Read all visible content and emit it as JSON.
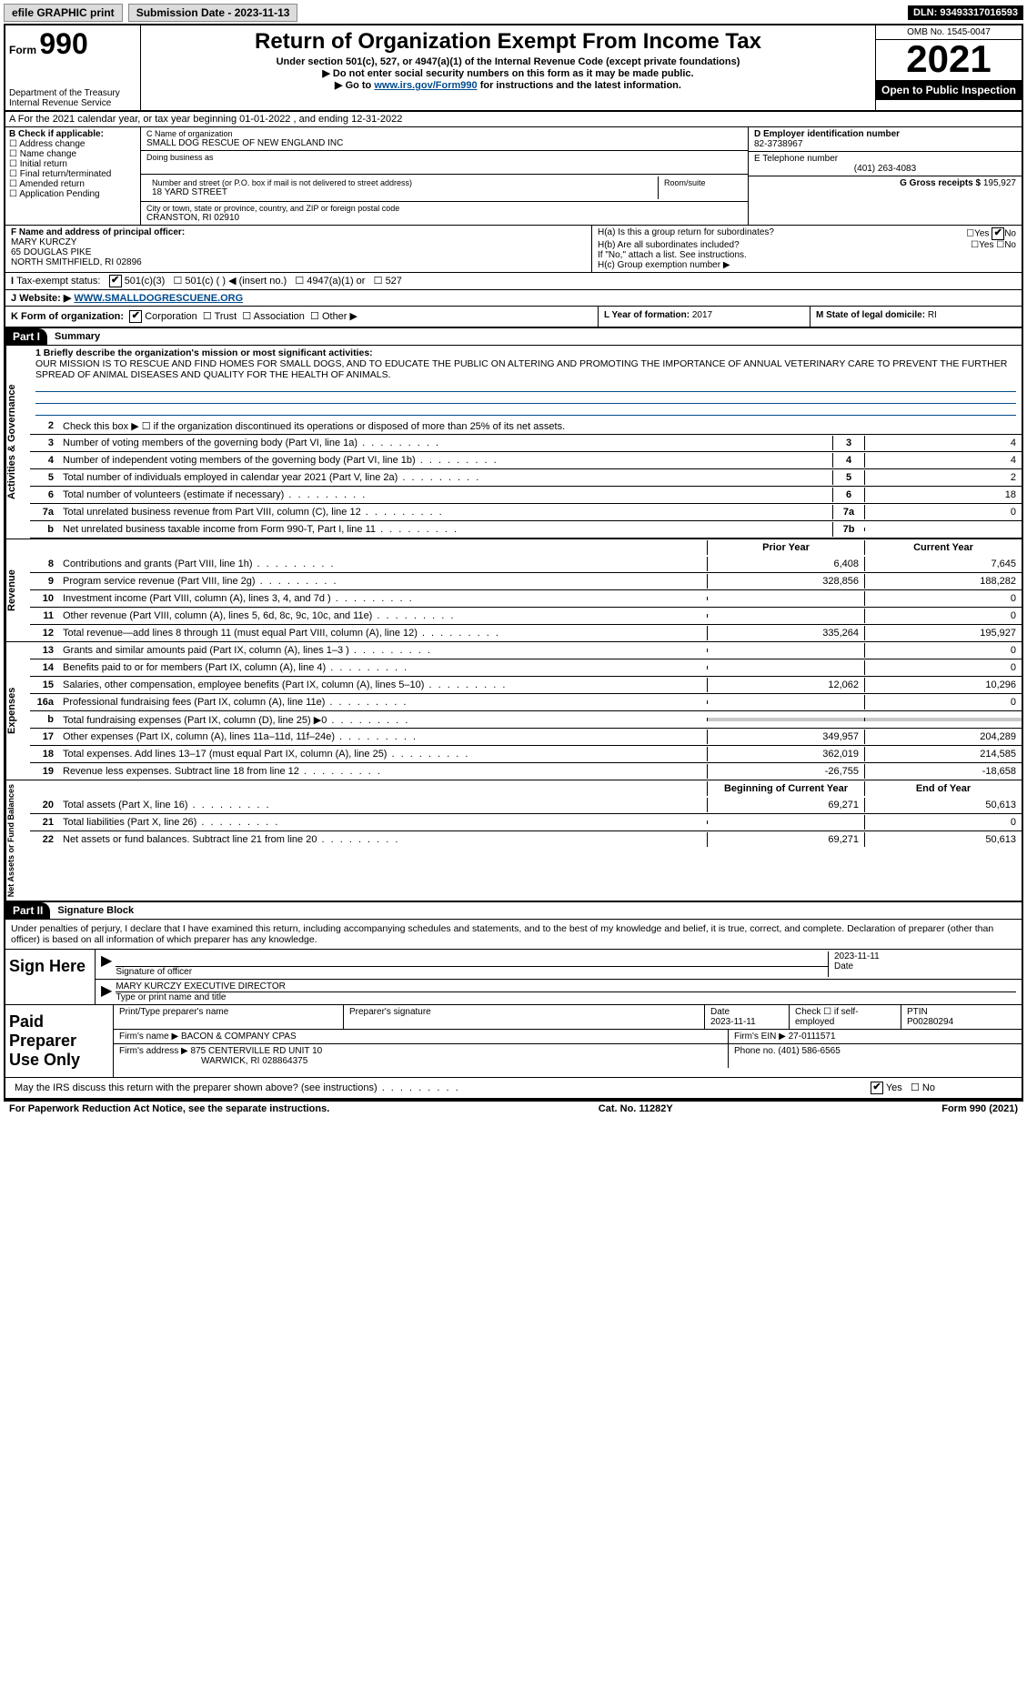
{
  "topbar": {
    "efile": "efile GRAPHIC print",
    "submission_label": "Submission Date - 2023-11-13",
    "dln": "DLN: 93493317016593"
  },
  "header": {
    "form_prefix": "Form",
    "form_number": "990",
    "title": "Return of Organization Exempt From Income Tax",
    "subtitle": "Under section 501(c), 527, or 4947(a)(1) of the Internal Revenue Code (except private foundations)",
    "note1": "▶ Do not enter social security numbers on this form as it may be made public.",
    "note2_pre": "▶ Go to ",
    "note2_link": "www.irs.gov/Form990",
    "note2_post": " for instructions and the latest information.",
    "dept": "Department of the Treasury",
    "irs": "Internal Revenue Service",
    "omb": "OMB No. 1545-0047",
    "year": "2021",
    "open": "Open to Public Inspection"
  },
  "rowA": "A For the 2021 calendar year, or tax year beginning 01-01-2022   , and ending 12-31-2022",
  "boxB": {
    "label": "B Check if applicable:",
    "items": [
      "Address change",
      "Name change",
      "Initial return",
      "Final return/terminated",
      "Amended return",
      "Application Pending"
    ]
  },
  "boxC": {
    "lbl_name": "C Name of organization",
    "org_name": "SMALL DOG RESCUE OF NEW ENGLAND INC",
    "lbl_dba": "Doing business as",
    "lbl_addr": "Number and street (or P.O. box if mail is not delivered to street address)",
    "lbl_room": "Room/suite",
    "street": "18 YARD STREET",
    "lbl_city": "City or town, state or province, country, and ZIP or foreign postal code",
    "city": "CRANSTON, RI  02910"
  },
  "boxD": {
    "lbl": "D Employer identification number",
    "val": "82-3738967"
  },
  "boxE": {
    "lbl": "E Telephone number",
    "val": "(401) 263-4083"
  },
  "boxG": {
    "lbl": "G Gross receipts $",
    "val": "195,927"
  },
  "boxF": {
    "lbl": "F Name and address of principal officer:",
    "name": "MARY KURCZY",
    "street": "65 DOUGLAS PIKE",
    "city": "NORTH SMITHFIELD, RI  02896"
  },
  "boxH": {
    "ha": "H(a)  Is this a group return for subordinates?",
    "hb": "H(b)  Are all subordinates included?",
    "hb_note": "If \"No,\" attach a list. See instructions.",
    "hc": "H(c)  Group exemption number ▶",
    "yes": "Yes",
    "no": "No"
  },
  "rowI": {
    "lbl": "Tax-exempt status:",
    "opts": [
      "501(c)(3)",
      "501(c) (  ) ◀ (insert no.)",
      "4947(a)(1) or",
      "527"
    ]
  },
  "rowJ": {
    "lbl": "Website: ▶",
    "val": "WWW.SMALLDOGRESCUENE.ORG"
  },
  "rowK": {
    "lbl": "K Form of organization:",
    "opts": [
      "Corporation",
      "Trust",
      "Association",
      "Other ▶"
    ]
  },
  "rowL": {
    "lbl": "L Year of formation:",
    "val": "2017"
  },
  "rowM": {
    "lbl": "M State of legal domicile:",
    "val": "RI"
  },
  "part1": {
    "hdr": "Part I",
    "title": "Summary",
    "line1_lbl": "1  Briefly describe the organization's mission or most significant activities:",
    "mission": "OUR MISSION IS TO RESCUE AND FIND HOMES FOR SMALL DOGS, AND TO EDUCATE THE PUBLIC ON ALTERING AND PROMOTING THE IMPORTANCE OF ANNUAL VETERINARY CARE TO PREVENT THE FURTHER SPREAD OF ANIMAL DISEASES AND QUALITY FOR THE HEALTH OF ANIMALS.",
    "line2": "Check this box ▶ ☐ if the organization discontinued its operations or disposed of more than 25% of its net assets.",
    "tabs": {
      "gov": "Activities & Governance",
      "rev": "Revenue",
      "exp": "Expenses",
      "net": "Net Assets or Fund Balances"
    },
    "gov_lines": [
      {
        "n": "3",
        "desc": "Number of voting members of the governing body (Part VI, line 1a)",
        "box": "3",
        "val": "4"
      },
      {
        "n": "4",
        "desc": "Number of independent voting members of the governing body (Part VI, line 1b)",
        "box": "4",
        "val": "4"
      },
      {
        "n": "5",
        "desc": "Total number of individuals employed in calendar year 2021 (Part V, line 2a)",
        "box": "5",
        "val": "2"
      },
      {
        "n": "6",
        "desc": "Total number of volunteers (estimate if necessary)",
        "box": "6",
        "val": "18"
      },
      {
        "n": "7a",
        "desc": "Total unrelated business revenue from Part VIII, column (C), line 12",
        "box": "7a",
        "val": "0"
      },
      {
        "n": "b",
        "desc": "Net unrelated business taxable income from Form 990-T, Part I, line 11",
        "box": "7b",
        "val": ""
      }
    ],
    "col_hdr_py": "Prior Year",
    "col_hdr_cy": "Current Year",
    "rev_lines": [
      {
        "n": "8",
        "desc": "Contributions and grants (Part VIII, line 1h)",
        "py": "6,408",
        "cy": "7,645"
      },
      {
        "n": "9",
        "desc": "Program service revenue (Part VIII, line 2g)",
        "py": "328,856",
        "cy": "188,282"
      },
      {
        "n": "10",
        "desc": "Investment income (Part VIII, column (A), lines 3, 4, and 7d )",
        "py": "",
        "cy": "0"
      },
      {
        "n": "11",
        "desc": "Other revenue (Part VIII, column (A), lines 5, 6d, 8c, 9c, 10c, and 11e)",
        "py": "",
        "cy": "0"
      },
      {
        "n": "12",
        "desc": "Total revenue—add lines 8 through 11 (must equal Part VIII, column (A), line 12)",
        "py": "335,264",
        "cy": "195,927"
      }
    ],
    "exp_lines": [
      {
        "n": "13",
        "desc": "Grants and similar amounts paid (Part IX, column (A), lines 1–3 )",
        "py": "",
        "cy": "0"
      },
      {
        "n": "14",
        "desc": "Benefits paid to or for members (Part IX, column (A), line 4)",
        "py": "",
        "cy": "0"
      },
      {
        "n": "15",
        "desc": "Salaries, other compensation, employee benefits (Part IX, column (A), lines 5–10)",
        "py": "12,062",
        "cy": "10,296"
      },
      {
        "n": "16a",
        "desc": "Professional fundraising fees (Part IX, column (A), line 11e)",
        "py": "",
        "cy": "0"
      },
      {
        "n": "b",
        "desc": "Total fundraising expenses (Part IX, column (D), line 25) ▶0",
        "py": "GREY",
        "cy": "GREY"
      },
      {
        "n": "17",
        "desc": "Other expenses (Part IX, column (A), lines 11a–11d, 11f–24e)",
        "py": "349,957",
        "cy": "204,289"
      },
      {
        "n": "18",
        "desc": "Total expenses. Add lines 13–17 (must equal Part IX, column (A), line 25)",
        "py": "362,019",
        "cy": "214,585"
      },
      {
        "n": "19",
        "desc": "Revenue less expenses. Subtract line 18 from line 12",
        "py": "-26,755",
        "cy": "-18,658"
      }
    ],
    "col_hdr_boy": "Beginning of Current Year",
    "col_hdr_eoy": "End of Year",
    "net_lines": [
      {
        "n": "20",
        "desc": "Total assets (Part X, line 16)",
        "py": "69,271",
        "cy": "50,613"
      },
      {
        "n": "21",
        "desc": "Total liabilities (Part X, line 26)",
        "py": "",
        "cy": "0"
      },
      {
        "n": "22",
        "desc": "Net assets or fund balances. Subtract line 21 from line 20",
        "py": "69,271",
        "cy": "50,613"
      }
    ]
  },
  "part2": {
    "hdr": "Part II",
    "title": "Signature Block",
    "declaration": "Under penalties of perjury, I declare that I have examined this return, including accompanying schedules and statements, and to the best of my knowledge and belief, it is true, correct, and complete. Declaration of preparer (other than officer) is based on all information of which preparer has any knowledge.",
    "sign_here": "Sign Here",
    "sig_officer": "Signature of officer",
    "sig_date": "Date",
    "sig_date_val": "2023-11-11",
    "officer_name": "MARY KURCZY  EXECUTIVE DIRECTOR",
    "type_name": "Type or print name and title",
    "paid": "Paid Preparer Use Only",
    "prep_name_lbl": "Print/Type preparer's name",
    "prep_sig_lbl": "Preparer's signature",
    "prep_date_lbl": "Date",
    "prep_date_val": "2023-11-11",
    "prep_check_lbl": "Check ☐ if self-employed",
    "ptin_lbl": "PTIN",
    "ptin_val": "P00280294",
    "firm_name_lbl": "Firm's name    ▶",
    "firm_name": "BACON & COMPANY CPAS",
    "firm_ein_lbl": "Firm's EIN ▶",
    "firm_ein": "27-0111571",
    "firm_addr_lbl": "Firm's address ▶",
    "firm_addr1": "875 CENTERVILLE RD UNIT 10",
    "firm_addr2": "WARWICK, RI  028864375",
    "firm_phone_lbl": "Phone no.",
    "firm_phone": "(401) 586-6565",
    "discuss": "May the IRS discuss this return with the preparer shown above? (see instructions)"
  },
  "footer": {
    "left": "For Paperwork Reduction Act Notice, see the separate instructions.",
    "mid": "Cat. No. 11282Y",
    "right": "Form 990 (2021)"
  }
}
